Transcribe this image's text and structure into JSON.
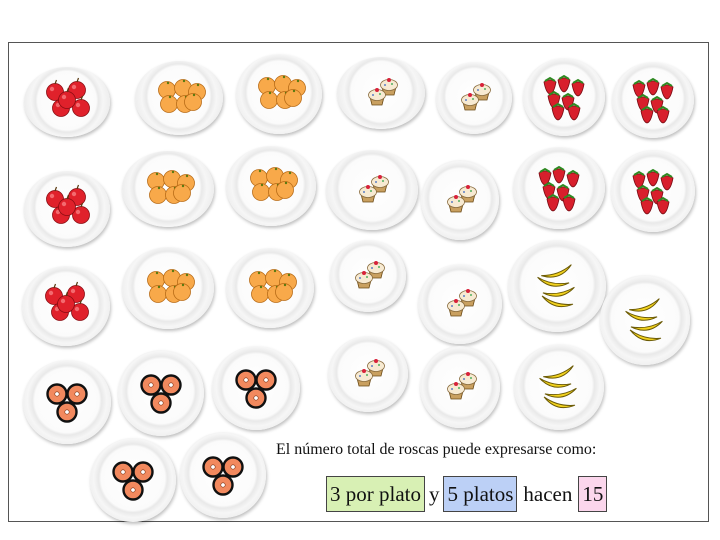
{
  "question": "El número total de roscas puede expresarse como:",
  "answer": {
    "per_plate": "3 por plato",
    "connector": "y",
    "plates": "5 platos",
    "verb": "hacen",
    "total": "15"
  },
  "colors": {
    "per_plate_box": "#d8f0b4",
    "plates_box": "#bcd0f6",
    "total_box": "#fbd6ec"
  },
  "food_icons": [
    "apple-icon",
    "orange-icon",
    "cupcake-icon",
    "strawberry-icon",
    "banana-icon",
    "donut-icon"
  ]
}
